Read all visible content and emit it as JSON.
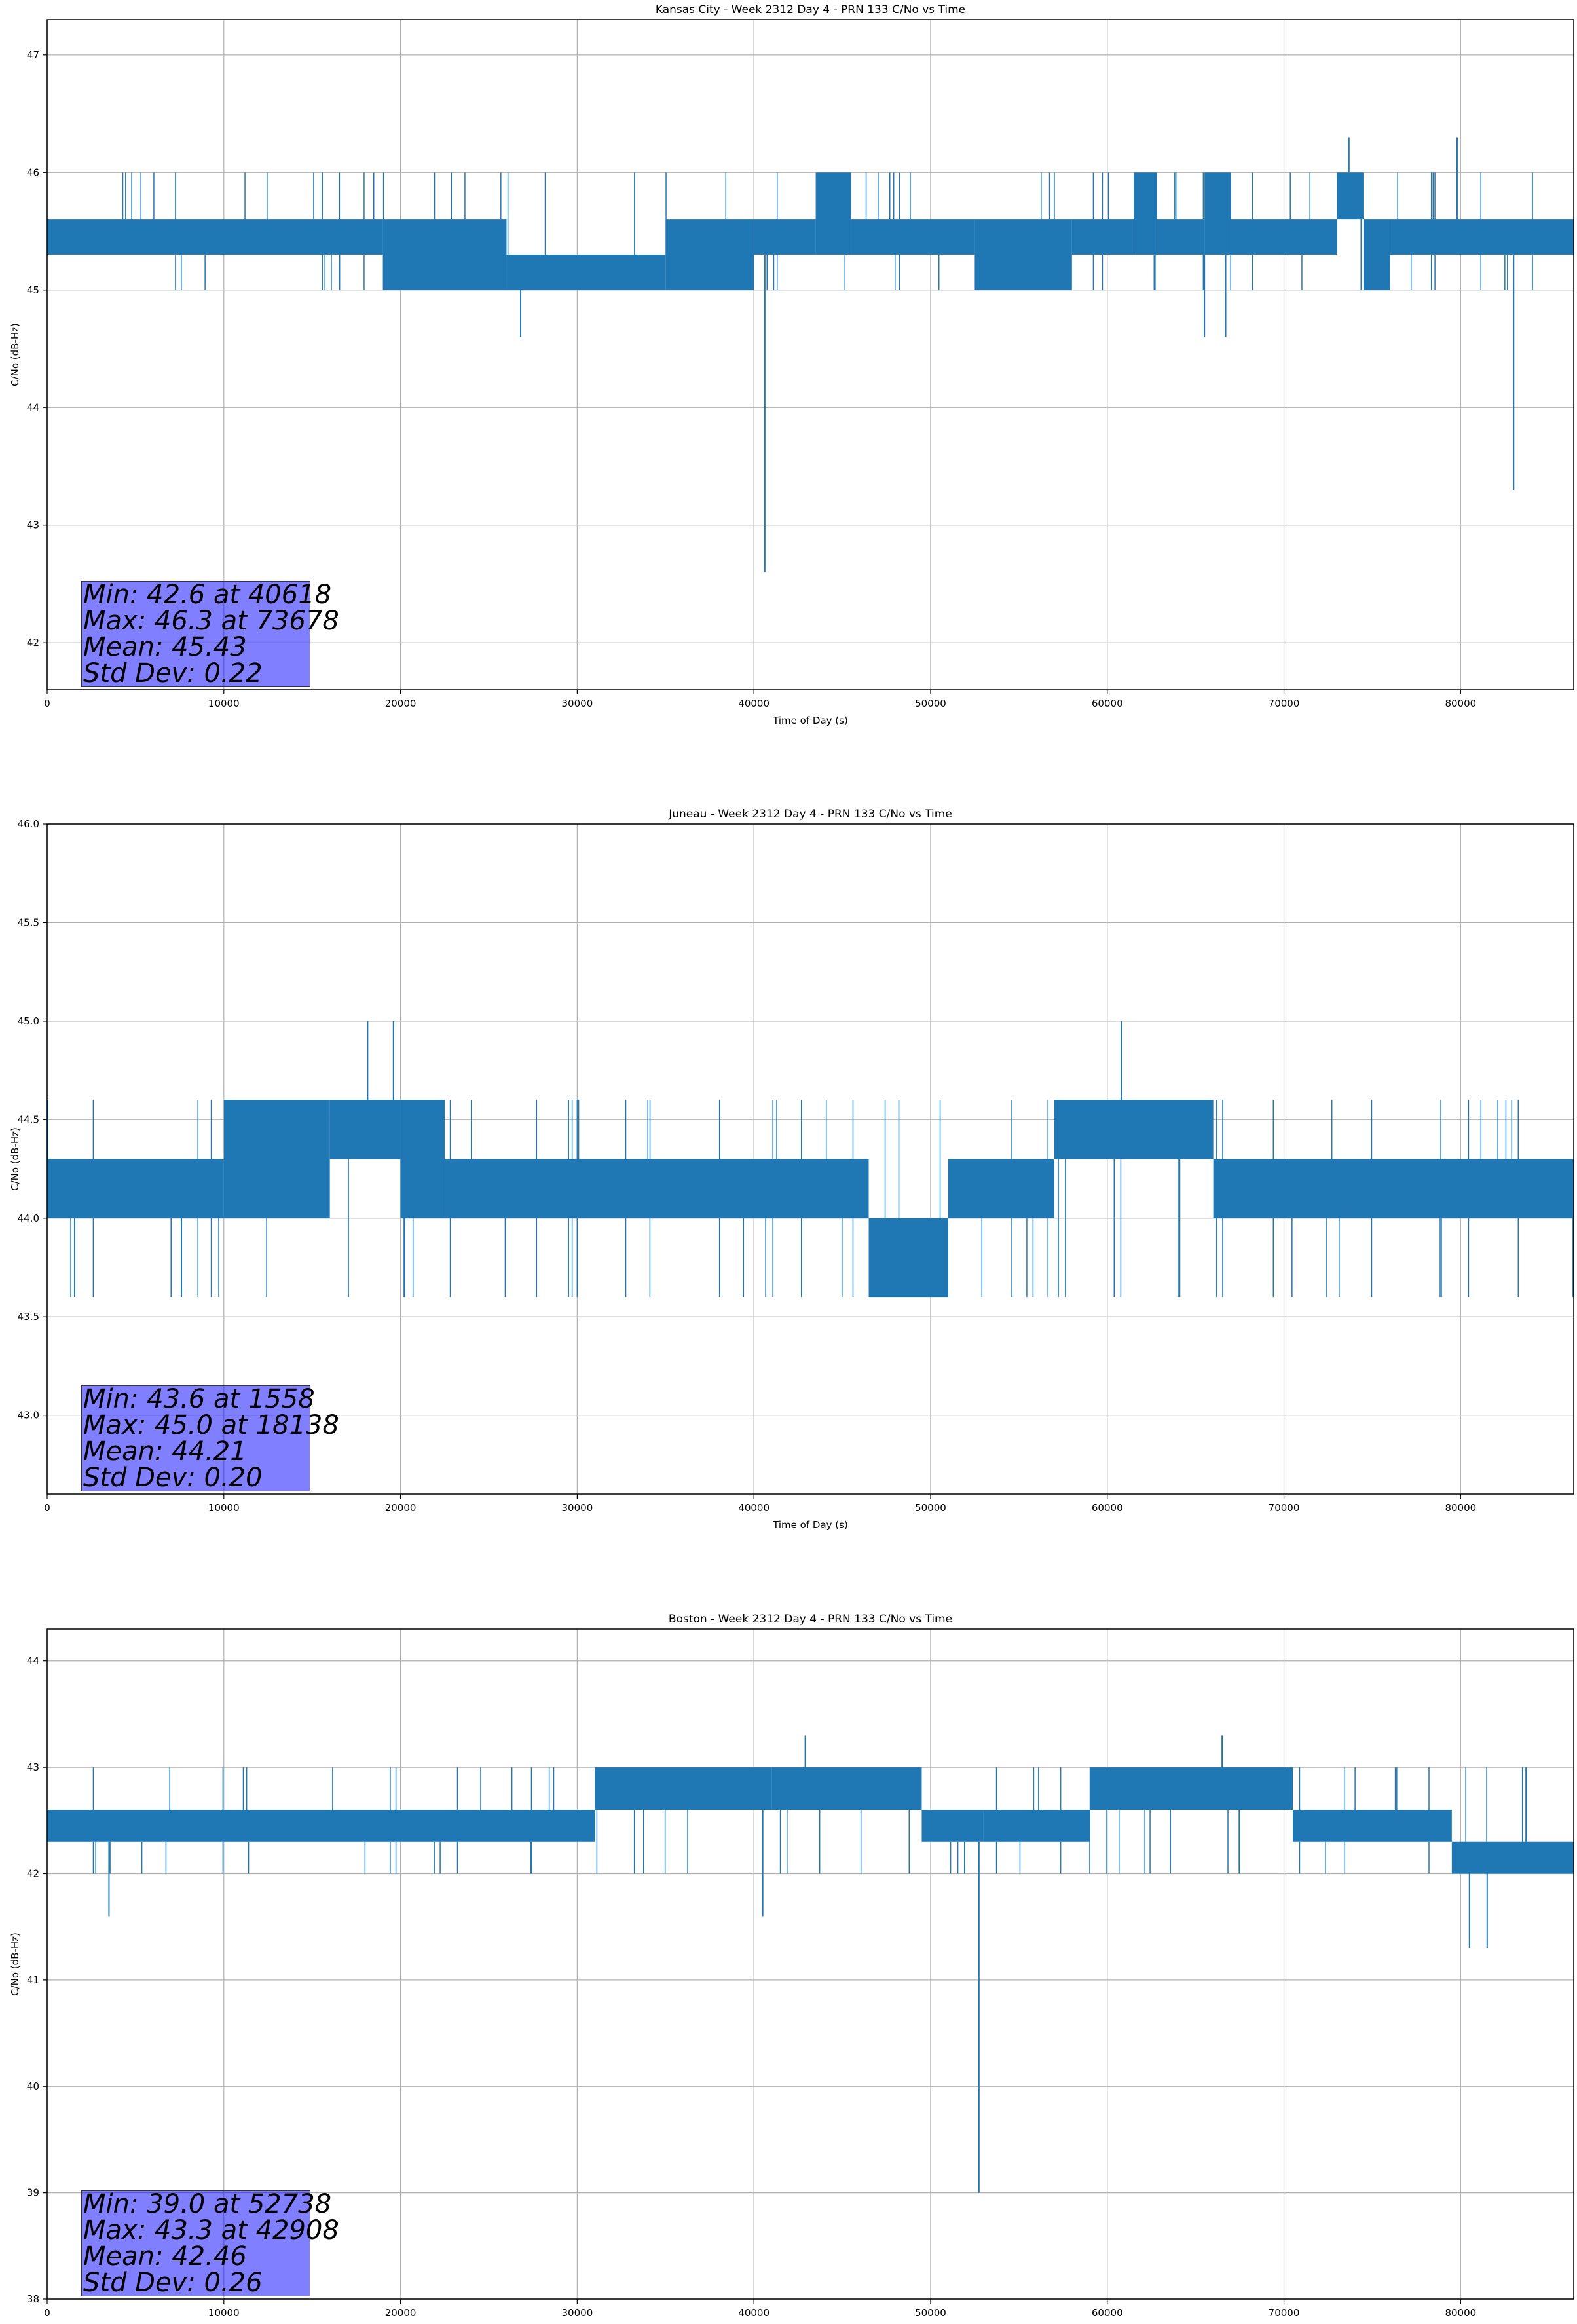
{
  "chart_data": [
    {
      "type": "line",
      "title": "Kansas City - Week 2312 Day 4 - PRN 133 C/No vs Time",
      "xlabel": "Time of Day (s)",
      "ylabel": "C/No (dB-Hz)",
      "xlim": [
        0,
        86400
      ],
      "ylim": [
        41.6,
        47.3
      ],
      "xticks": [
        0,
        10000,
        20000,
        30000,
        40000,
        50000,
        60000,
        70000,
        80000
      ],
      "yticks": [
        42,
        43,
        44,
        45,
        46,
        47
      ],
      "grid": true,
      "color": "#1f77b4",
      "band_segments": [
        {
          "x": [
            0,
            19000
          ],
          "low": 45.3,
          "high": 45.6
        },
        {
          "x": [
            19000,
            26000
          ],
          "low": 45.0,
          "high": 45.6
        },
        {
          "x": [
            26000,
            35000
          ],
          "low": 45.0,
          "high": 45.3
        },
        {
          "x": [
            35000,
            40000
          ],
          "low": 45.0,
          "high": 45.6
        },
        {
          "x": [
            40000,
            43500
          ],
          "low": 45.3,
          "high": 45.6
        },
        {
          "x": [
            43500,
            45500
          ],
          "low": 45.3,
          "high": 46.0
        },
        {
          "x": [
            45500,
            52500
          ],
          "low": 45.3,
          "high": 45.6
        },
        {
          "x": [
            52500,
            58000
          ],
          "low": 45.0,
          "high": 45.6
        },
        {
          "x": [
            58000,
            61500
          ],
          "low": 45.3,
          "high": 45.6
        },
        {
          "x": [
            61500,
            62800
          ],
          "low": 45.3,
          "high": 46.0
        },
        {
          "x": [
            62800,
            65500
          ],
          "low": 45.3,
          "high": 45.6
        },
        {
          "x": [
            65500,
            67000
          ],
          "low": 45.3,
          "high": 46.0
        },
        {
          "x": [
            67000,
            73000
          ],
          "low": 45.3,
          "high": 45.6
        },
        {
          "x": [
            73000,
            74500
          ],
          "low": 45.6,
          "high": 46.0
        },
        {
          "x": [
            74500,
            76000
          ],
          "low": 45.0,
          "high": 45.6
        },
        {
          "x": [
            76000,
            86400
          ],
          "low": 45.3,
          "high": 45.6
        }
      ],
      "upper_spike_level": 46.0,
      "lower_spike_level": 45.0,
      "outliers": [
        {
          "x": 26800,
          "y": 44.6
        },
        {
          "x": 40618,
          "y": 42.6
        },
        {
          "x": 65500,
          "y": 44.6
        },
        {
          "x": 66700,
          "y": 44.6
        },
        {
          "x": 73678,
          "y": 46.3
        },
        {
          "x": 79800,
          "y": 46.3
        },
        {
          "x": 83000,
          "y": 43.3
        }
      ],
      "stats": [
        "Min: 42.6 at 40618",
        "Max: 46.3 at 73678",
        "Mean: 45.43",
        "Std Dev: 0.22"
      ]
    },
    {
      "type": "line",
      "title": "Juneau - Week 2312 Day 4 - PRN 133 C/No vs Time",
      "xlabel": "Time of Day (s)",
      "ylabel": "C/No (dB-Hz)",
      "xlim": [
        0,
        86400
      ],
      "ylim": [
        42.6,
        46.0
      ],
      "xticks": [
        0,
        10000,
        20000,
        30000,
        40000,
        50000,
        60000,
        70000,
        80000
      ],
      "yticks": [
        43.0,
        43.5,
        44.0,
        44.5,
        45.0,
        45.5,
        46.0
      ],
      "grid": true,
      "color": "#1f77b4",
      "band_segments": [
        {
          "x": [
            0,
            10000
          ],
          "low": 44.0,
          "high": 44.3
        },
        {
          "x": [
            10000,
            16000
          ],
          "low": 44.0,
          "high": 44.6
        },
        {
          "x": [
            16000,
            20000
          ],
          "low": 44.3,
          "high": 44.6
        },
        {
          "x": [
            20000,
            22500
          ],
          "low": 44.0,
          "high": 44.6
        },
        {
          "x": [
            22500,
            46500
          ],
          "low": 44.0,
          "high": 44.3
        },
        {
          "x": [
            46500,
            51000
          ],
          "low": 43.6,
          "high": 44.0
        },
        {
          "x": [
            51000,
            57000
          ],
          "low": 44.0,
          "high": 44.3
        },
        {
          "x": [
            57000,
            66000
          ],
          "low": 44.3,
          "high": 44.6
        },
        {
          "x": [
            66000,
            86400
          ],
          "low": 44.0,
          "high": 44.3
        }
      ],
      "upper_spike_level": 44.6,
      "lower_spike_level": 43.6,
      "outliers": [
        {
          "x": 1558,
          "y": 43.6
        },
        {
          "x": 7600,
          "y": 43.6
        },
        {
          "x": 18138,
          "y": 45.0
        },
        {
          "x": 19600,
          "y": 45.0
        },
        {
          "x": 60800,
          "y": 45.0
        }
      ],
      "stats": [
        "Min: 43.6 at 1558",
        "Max: 45.0 at 18138",
        "Mean: 44.21",
        "Std Dev: 0.20"
      ]
    },
    {
      "type": "line",
      "title": "Boston - Week 2312 Day 4 - PRN 133 C/No vs Time",
      "xlabel": "Time of Day (s)",
      "ylabel": "C/No (dB-Hz)",
      "xlim": [
        0,
        86400
      ],
      "ylim": [
        38.0,
        44.3
      ],
      "xticks": [
        0,
        10000,
        20000,
        30000,
        40000,
        50000,
        60000,
        70000,
        80000
      ],
      "yticks": [
        38,
        39,
        40,
        41,
        42,
        43,
        44
      ],
      "grid": true,
      "color": "#1f77b4",
      "band_segments": [
        {
          "x": [
            0,
            31000
          ],
          "low": 42.3,
          "high": 42.6
        },
        {
          "x": [
            31000,
            41000
          ],
          "low": 42.6,
          "high": 43.0
        },
        {
          "x": [
            41000,
            49500
          ],
          "low": 42.6,
          "high": 43.0
        },
        {
          "x": [
            49500,
            53000
          ],
          "low": 42.3,
          "high": 42.6
        },
        {
          "x": [
            53000,
            59000
          ],
          "low": 42.3,
          "high": 42.6
        },
        {
          "x": [
            59000,
            70500
          ],
          "low": 42.6,
          "high": 43.0
        },
        {
          "x": [
            70500,
            79500
          ],
          "low": 42.3,
          "high": 42.6
        },
        {
          "x": [
            79500,
            86400
          ],
          "low": 42.0,
          "high": 42.3
        }
      ],
      "upper_spike_level": 43.0,
      "lower_spike_level": 42.0,
      "outliers": [
        {
          "x": 3500,
          "y": 41.6
        },
        {
          "x": 40500,
          "y": 41.6
        },
        {
          "x": 42908,
          "y": 43.3
        },
        {
          "x": 52738,
          "y": 39.0
        },
        {
          "x": 66500,
          "y": 43.3
        },
        {
          "x": 80500,
          "y": 41.3
        },
        {
          "x": 81500,
          "y": 41.3
        },
        {
          "x": 83700,
          "y": 43.0
        }
      ],
      "stats": [
        "Min: 39.0 at 52738",
        "Max: 43.3 at 42908",
        "Mean: 42.46",
        "Std Dev: 0.26"
      ]
    }
  ]
}
